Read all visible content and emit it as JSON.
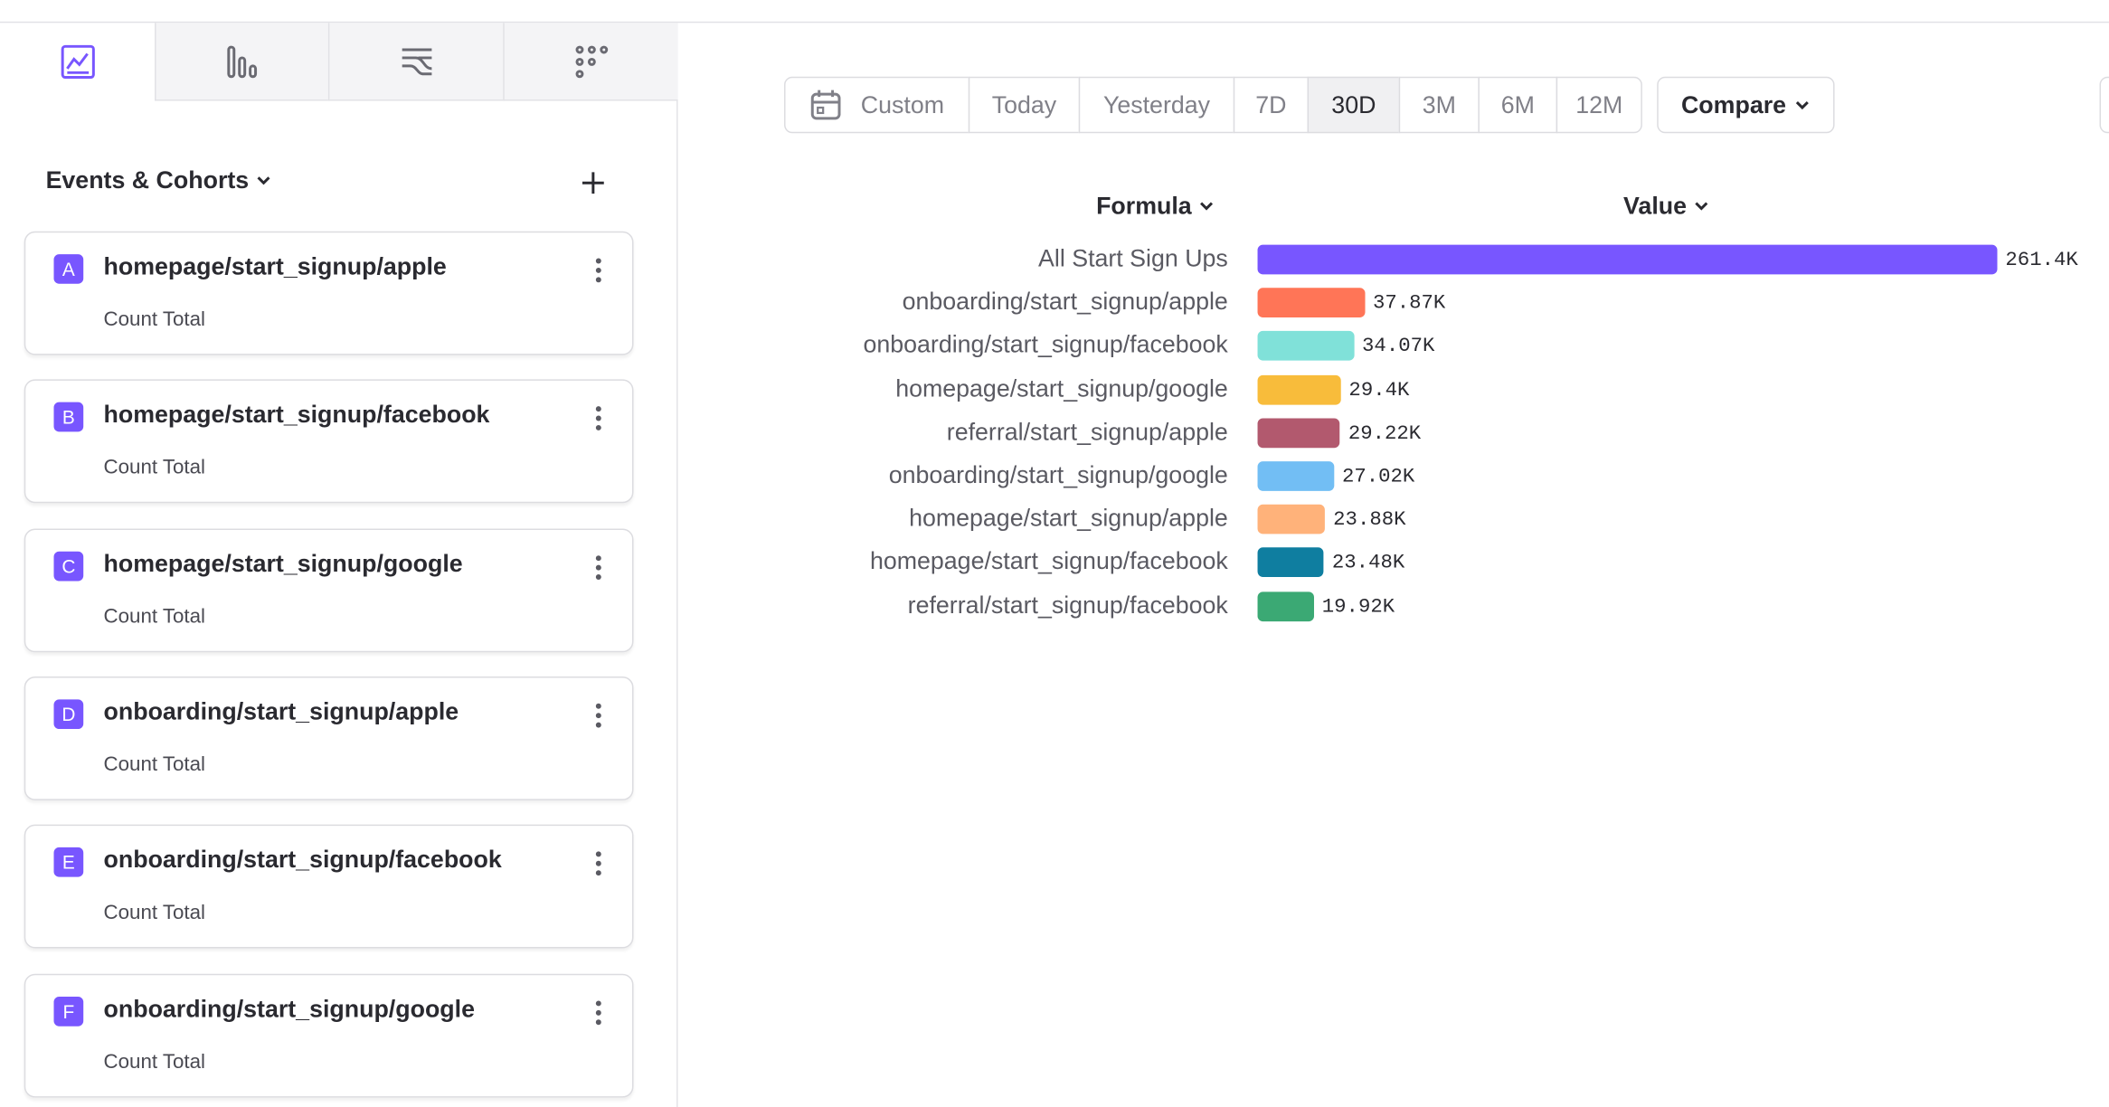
{
  "sidebar": {
    "section_title": "Events & Cohorts",
    "events": [
      {
        "letter": "A",
        "name": "homepage/start_signup/apple",
        "measure": "Count Total"
      },
      {
        "letter": "B",
        "name": "homepage/start_signup/facebook",
        "measure": "Count Total"
      },
      {
        "letter": "C",
        "name": "homepage/start_signup/google",
        "measure": "Count Total"
      },
      {
        "letter": "D",
        "name": "onboarding/start_signup/apple",
        "measure": "Count Total"
      },
      {
        "letter": "E",
        "name": "onboarding/start_signup/facebook",
        "measure": "Count Total"
      },
      {
        "letter": "F",
        "name": "onboarding/start_signup/google",
        "measure": "Count Total"
      }
    ]
  },
  "toolbar": {
    "date_ranges": [
      "Custom",
      "Today",
      "Yesterday",
      "7D",
      "30D",
      "3M",
      "6M",
      "12M"
    ],
    "selected": 4,
    "compare": "Compare"
  },
  "table": {
    "headers": [
      "Formula",
      "Value"
    ]
  },
  "chart_data": {
    "type": "bar",
    "orientation": "horizontal",
    "categories": [
      "All Start Sign Ups",
      "onboarding/start_signup/apple",
      "onboarding/start_signup/facebook",
      "homepage/start_signup/google",
      "referral/start_signup/apple",
      "onboarding/start_signup/google",
      "homepage/start_signup/apple",
      "homepage/start_signup/facebook",
      "referral/start_signup/facebook"
    ],
    "values": [
      261400,
      37870,
      34070,
      29400,
      29220,
      27020,
      23880,
      23480,
      19920
    ],
    "value_labels": [
      "261.4K",
      "37.87K",
      "34.07K",
      "29.4K",
      "29.22K",
      "27.02K",
      "23.88K",
      "23.48K",
      "19.92K"
    ],
    "colors": [
      "#7856ff",
      "#ff7557",
      "#80e1d9",
      "#f8bc3b",
      "#b2596e",
      "#72bef4",
      "#ffb27a",
      "#0f7ea0",
      "#3ba974"
    ]
  }
}
